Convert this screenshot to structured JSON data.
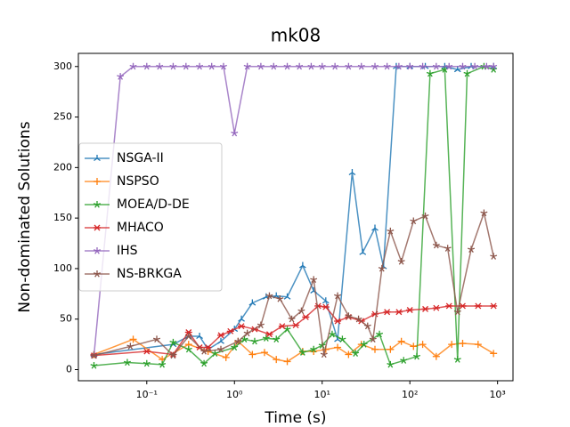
{
  "chart_data": {
    "type": "line",
    "title": "mk08",
    "x_label": "Time (s)",
    "y_label": "Non-dominated Solutions",
    "xscale": "log",
    "xlim": [
      0.0166,
      1500
    ],
    "ylim": [
      -11,
      313
    ],
    "xticks": [
      {
        "value": 0.1,
        "label": "10⁻¹"
      },
      {
        "value": 1,
        "label": "10⁰"
      },
      {
        "value": 10,
        "label": "10¹"
      },
      {
        "value": 100,
        "label": "10²"
      },
      {
        "value": 1000,
        "label": "10³"
      }
    ],
    "yticks": [
      0,
      50,
      100,
      150,
      200,
      250,
      300
    ],
    "grid": false,
    "legend": "center left",
    "series": [
      {
        "name": "NSGA-II",
        "color": "#1f77b4",
        "marker": "tri",
        "x": [
          0.025,
          0.2,
          0.3,
          0.4,
          0.5,
          0.7,
          1,
          1.2,
          1.6,
          2.3,
          3,
          4,
          6,
          8,
          11,
          15,
          22,
          29,
          40,
          50,
          70,
          100,
          150,
          250,
          350,
          500,
          900
        ],
        "values": [
          15,
          25,
          33,
          33,
          20,
          28,
          40,
          50,
          66,
          72,
          73,
          72,
          103,
          78,
          68,
          30,
          195,
          116,
          140,
          102,
          300,
          300,
          300,
          300,
          297,
          300,
          300
        ]
      },
      {
        "name": "NSPSO",
        "color": "#ff7f0e",
        "marker": "plus",
        "x": [
          0.025,
          0.07,
          0.15,
          0.3,
          0.5,
          0.8,
          1.1,
          1.6,
          2.2,
          3,
          4,
          6,
          8,
          11,
          15,
          20,
          28,
          40,
          60,
          80,
          110,
          140,
          200,
          300,
          400,
          600,
          900
        ],
        "values": [
          15,
          30,
          10,
          25,
          18,
          12,
          28,
          15,
          17,
          10,
          8,
          18,
          18,
          20,
          22,
          15,
          25,
          20,
          20,
          28,
          23,
          25,
          13,
          25,
          26,
          25,
          16
        ]
      },
      {
        "name": "MOEA/D-DE",
        "color": "#2ca02c",
        "marker": "star",
        "x": [
          0.025,
          0.06,
          0.1,
          0.15,
          0.2,
          0.3,
          0.45,
          0.6,
          1,
          1.3,
          1.7,
          2.3,
          3,
          4,
          6,
          8,
          10,
          13,
          17,
          24,
          30,
          45,
          60,
          85,
          120,
          170,
          250,
          350,
          450,
          700,
          900
        ],
        "values": [
          4,
          7,
          6,
          5,
          27,
          20,
          6,
          16,
          22,
          30,
          28,
          31,
          30,
          40,
          17,
          20,
          24,
          35,
          30,
          16,
          25,
          35,
          5,
          9,
          13,
          293,
          297,
          10,
          293,
          300,
          297
        ]
      },
      {
        "name": "MHACO",
        "color": "#d62728",
        "marker": "x",
        "x": [
          0.025,
          0.1,
          0.2,
          0.3,
          0.4,
          0.5,
          0.7,
          0.9,
          1.2,
          1.7,
          2.5,
          3.5,
          5,
          6.5,
          9,
          11,
          15,
          20,
          28,
          40,
          55,
          75,
          100,
          150,
          200,
          280,
          400,
          600,
          900
        ],
        "values": [
          14,
          18,
          15,
          37,
          22,
          22,
          34,
          38,
          43,
          40,
          35,
          43,
          44,
          52,
          63,
          62,
          48,
          52,
          48,
          55,
          57,
          57,
          59,
          60,
          61,
          63,
          63,
          63,
          63
        ]
      },
      {
        "name": "IHS",
        "color": "#9467bd",
        "marker": "star",
        "x": [
          0.025,
          0.05,
          0.07,
          0.1,
          0.14,
          0.2,
          0.28,
          0.4,
          0.55,
          0.75,
          1,
          1.4,
          2,
          2.8,
          4,
          5.5,
          7.5,
          10,
          14,
          20,
          28,
          40,
          55,
          75,
          100,
          140,
          200,
          280,
          400,
          550,
          750,
          900
        ],
        "values": [
          14,
          290,
          300,
          300,
          300,
          300,
          300,
          300,
          300,
          300,
          234,
          300,
          300,
          300,
          300,
          300,
          300,
          300,
          300,
          300,
          300,
          300,
          300,
          300,
          300,
          300,
          300,
          300,
          300,
          300,
          300,
          300
        ]
      },
      {
        "name": "NS-BRKGA",
        "color": "#8c564b",
        "marker": "star",
        "x": [
          0.025,
          0.065,
          0.13,
          0.2,
          0.3,
          0.45,
          0.7,
          1.1,
          1.4,
          2,
          2.5,
          3.3,
          4.5,
          5.8,
          8,
          10.5,
          15,
          20,
          26,
          33,
          38,
          48,
          60,
          80,
          110,
          150,
          200,
          270,
          350,
          500,
          700,
          900
        ],
        "values": [
          14,
          23,
          30,
          14,
          33,
          18,
          20,
          28,
          36,
          44,
          73,
          70,
          50,
          58,
          89,
          15,
          73,
          53,
          50,
          43,
          30,
          100,
          137,
          107,
          147,
          152,
          123,
          120,
          57,
          119,
          155,
          112
        ]
      }
    ]
  }
}
